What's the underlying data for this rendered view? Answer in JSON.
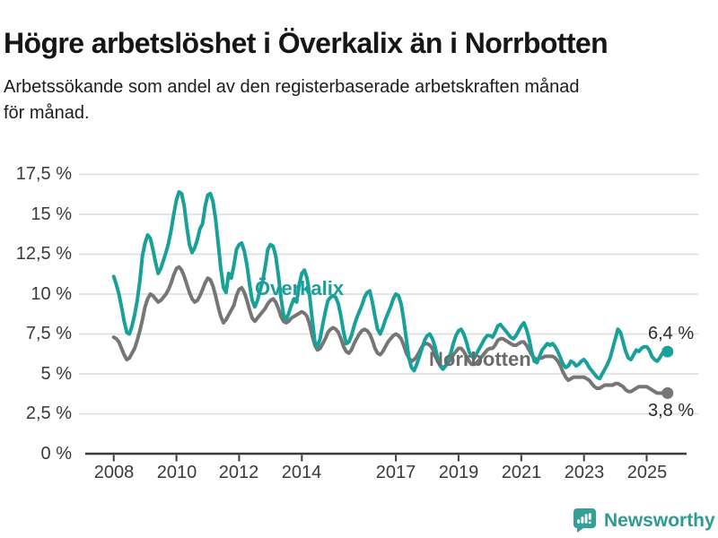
{
  "header": {
    "title": "Högre arbetslöshet i Överkalix än i Norrbotten",
    "subtitle": "Arbetssökande som andel av den registerbaserade arbetskraften månad för månad.",
    "subtitle_lines": [
      "Arbetssökande som andel av den registerbaserade arbetskraften månad",
      "för månad."
    ]
  },
  "chart_data": {
    "type": "line",
    "title": "Högre arbetslöshet i Överkalix än i Norrbotten",
    "subtitle": "Arbetssökande som andel av den registerbaserade arbetskraften månad för månad.",
    "unit": "%",
    "frequency": "monthly",
    "x_start": 2008,
    "x_end_label": "Sep 2025",
    "ylim": [
      0,
      17.5
    ],
    "grid": "horizontal",
    "legend_position": "inline-labels",
    "colors": {
      "overkalix": "#18a099",
      "norrbotten": "#767676",
      "grid": "#dcdcdc",
      "axis": "#3b3b3b"
    },
    "y_ticks": [
      {
        "value": 0,
        "label": "0 %"
      },
      {
        "value": 2.5,
        "label": "2,5 %"
      },
      {
        "value": 5,
        "label": "5 %"
      },
      {
        "value": 7.5,
        "label": "7,5 %"
      },
      {
        "value": 10,
        "label": "10 %"
      },
      {
        "value": 12.5,
        "label": "12,5 %"
      },
      {
        "value": 15,
        "label": "15 %"
      },
      {
        "value": 17.5,
        "label": "17,5 %"
      }
    ],
    "x_ticks": [
      {
        "value": 2008,
        "label": "2008"
      },
      {
        "value": 2010,
        "label": "2010"
      },
      {
        "value": 2012,
        "label": "2012"
      },
      {
        "value": 2014,
        "label": "2014"
      },
      {
        "value": 2017,
        "label": "2017"
      },
      {
        "value": 2019,
        "label": "2019"
      },
      {
        "value": 2021,
        "label": "2021"
      },
      {
        "value": 2023,
        "label": "2023"
      },
      {
        "value": 2025,
        "label": "2025"
      }
    ],
    "series": [
      {
        "name": "Överkalix",
        "color": "#18a099",
        "end_label": "6,4 %",
        "end_value": 6.4,
        "values": [
          11.1,
          10.6,
          10.0,
          9.2,
          8.3,
          7.6,
          7.5,
          8.0,
          8.7,
          9.6,
          10.8,
          12.4,
          13.2,
          13.7,
          13.5,
          12.8,
          12.0,
          11.3,
          11.6,
          12.1,
          12.6,
          13.2,
          14.0,
          15.0,
          15.9,
          16.4,
          16.3,
          15.5,
          14.2,
          13.1,
          12.6,
          12.9,
          13.4,
          14.1,
          14.4,
          15.5,
          16.2,
          16.3,
          15.8,
          14.7,
          13.2,
          11.6,
          10.4,
          10.1,
          11.3,
          11.0,
          11.8,
          12.8,
          13.1,
          13.2,
          12.7,
          11.8,
          10.6,
          9.6,
          9.2,
          9.6,
          10.2,
          10.8,
          11.7,
          12.8,
          13.1,
          13.0,
          12.4,
          11.2,
          9.8,
          8.7,
          8.4,
          8.8,
          9.3,
          9.7,
          9.5,
          10.6,
          11.3,
          11.5,
          11.0,
          9.9,
          8.4,
          7.0,
          6.7,
          7.2,
          8.1,
          8.9,
          9.6,
          9.8,
          9.9,
          9.8,
          9.4,
          8.6,
          7.6,
          6.9,
          7.0,
          7.4,
          8.0,
          8.5,
          8.9,
          9.3,
          9.8,
          10.1,
          10.2,
          9.5,
          8.6,
          7.8,
          7.5,
          7.9,
          8.4,
          8.8,
          9.2,
          9.7,
          10.0,
          9.9,
          9.4,
          8.4,
          7.2,
          6.0,
          5.4,
          5.2,
          5.6,
          6.1,
          6.6,
          7.1,
          7.4,
          7.5,
          7.2,
          6.7,
          6.0,
          5.5,
          5.3,
          5.5,
          5.9,
          6.3,
          6.9,
          7.4,
          7.7,
          7.8,
          7.5,
          7.0,
          6.4,
          6.1,
          6.0,
          6.3,
          6.6,
          6.9,
          7.2,
          7.4,
          7.4,
          7.3,
          7.6,
          8.0,
          8.1,
          7.9,
          7.7,
          7.5,
          7.3,
          7.2,
          7.4,
          7.7,
          8.0,
          8.2,
          7.8,
          7.2,
          6.4,
          5.8,
          5.7,
          6.1,
          6.5,
          6.7,
          6.9,
          6.8,
          6.9,
          6.7,
          6.4,
          6.0,
          5.6,
          5.4,
          5.5,
          5.8,
          5.7,
          5.5,
          5.6,
          5.8,
          5.9,
          5.7,
          5.4,
          5.2,
          5.0,
          4.8,
          4.7,
          5.0,
          5.3,
          5.6,
          6.0,
          6.6,
          7.2,
          7.8,
          7.6,
          7.0,
          6.4,
          6.0,
          5.9,
          6.2,
          6.5,
          6.4,
          6.6,
          6.7,
          6.7,
          6.5,
          6.1,
          5.9,
          5.8,
          6.0,
          6.3,
          6.4,
          6.4
        ]
      },
      {
        "name": "Norrbotten",
        "color": "#767676",
        "end_label": "3,8 %",
        "end_value": 3.8,
        "values": [
          7.3,
          7.2,
          7.0,
          6.6,
          6.2,
          5.9,
          6.0,
          6.3,
          6.6,
          7.1,
          7.7,
          8.4,
          9.2,
          9.7,
          10.0,
          9.9,
          9.7,
          9.5,
          9.6,
          9.8,
          10.0,
          10.3,
          10.7,
          11.2,
          11.6,
          11.7,
          11.5,
          11.1,
          10.6,
          10.1,
          9.7,
          9.5,
          9.6,
          9.9,
          10.3,
          10.7,
          11.0,
          10.9,
          10.5,
          9.9,
          9.2,
          8.6,
          8.2,
          8.4,
          8.7,
          9.0,
          9.3,
          9.9,
          10.3,
          10.4,
          10.1,
          9.6,
          9.0,
          8.5,
          8.3,
          8.5,
          8.7,
          8.9,
          9.1,
          9.4,
          9.6,
          9.7,
          9.5,
          9.1,
          8.6,
          8.3,
          8.2,
          8.3,
          8.5,
          8.6,
          8.7,
          8.8,
          8.9,
          8.8,
          8.6,
          8.1,
          7.4,
          6.8,
          6.5,
          6.6,
          6.9,
          7.2,
          7.6,
          7.8,
          7.9,
          7.8,
          7.6,
          7.2,
          6.7,
          6.4,
          6.3,
          6.5,
          6.9,
          7.2,
          7.5,
          7.7,
          7.8,
          7.7,
          7.5,
          7.1,
          6.6,
          6.3,
          6.2,
          6.4,
          6.7,
          7.0,
          7.2,
          7.4,
          7.5,
          7.4,
          7.2,
          6.8,
          6.3,
          6.0,
          5.8,
          5.9,
          6.1,
          6.4,
          6.7,
          6.9,
          6.9,
          6.8,
          6.6,
          6.2,
          5.8,
          5.5,
          5.4,
          5.5,
          5.7,
          5.9,
          6.2,
          6.4,
          6.6,
          6.6,
          6.4,
          6.1,
          5.8,
          5.6,
          5.6,
          5.7,
          5.9,
          6.1,
          6.3,
          6.5,
          6.6,
          6.6,
          6.8,
          7.1,
          7.2,
          7.2,
          7.1,
          7.0,
          6.9,
          6.8,
          6.8,
          6.9,
          7.0,
          7.0,
          6.8,
          6.5,
          6.2,
          6.0,
          5.9,
          6.0,
          6.0,
          6.1,
          6.1,
          6.1,
          6.1,
          6.0,
          5.8,
          5.5,
          5.1,
          4.8,
          4.6,
          4.7,
          4.8,
          4.8,
          4.8,
          4.8,
          4.8,
          4.7,
          4.6,
          4.4,
          4.2,
          4.1,
          4.1,
          4.2,
          4.3,
          4.3,
          4.3,
          4.3,
          4.4,
          4.4,
          4.3,
          4.2,
          4.0,
          3.9,
          3.9,
          4.0,
          4.1,
          4.2,
          4.2,
          4.2,
          4.2,
          4.1,
          4.0,
          3.9,
          3.8,
          3.8,
          3.8,
          3.8,
          3.8
        ]
      }
    ]
  },
  "footer": {
    "brand": "Newsworthy",
    "logo_icon": "bar-chart-speech-bubble"
  }
}
